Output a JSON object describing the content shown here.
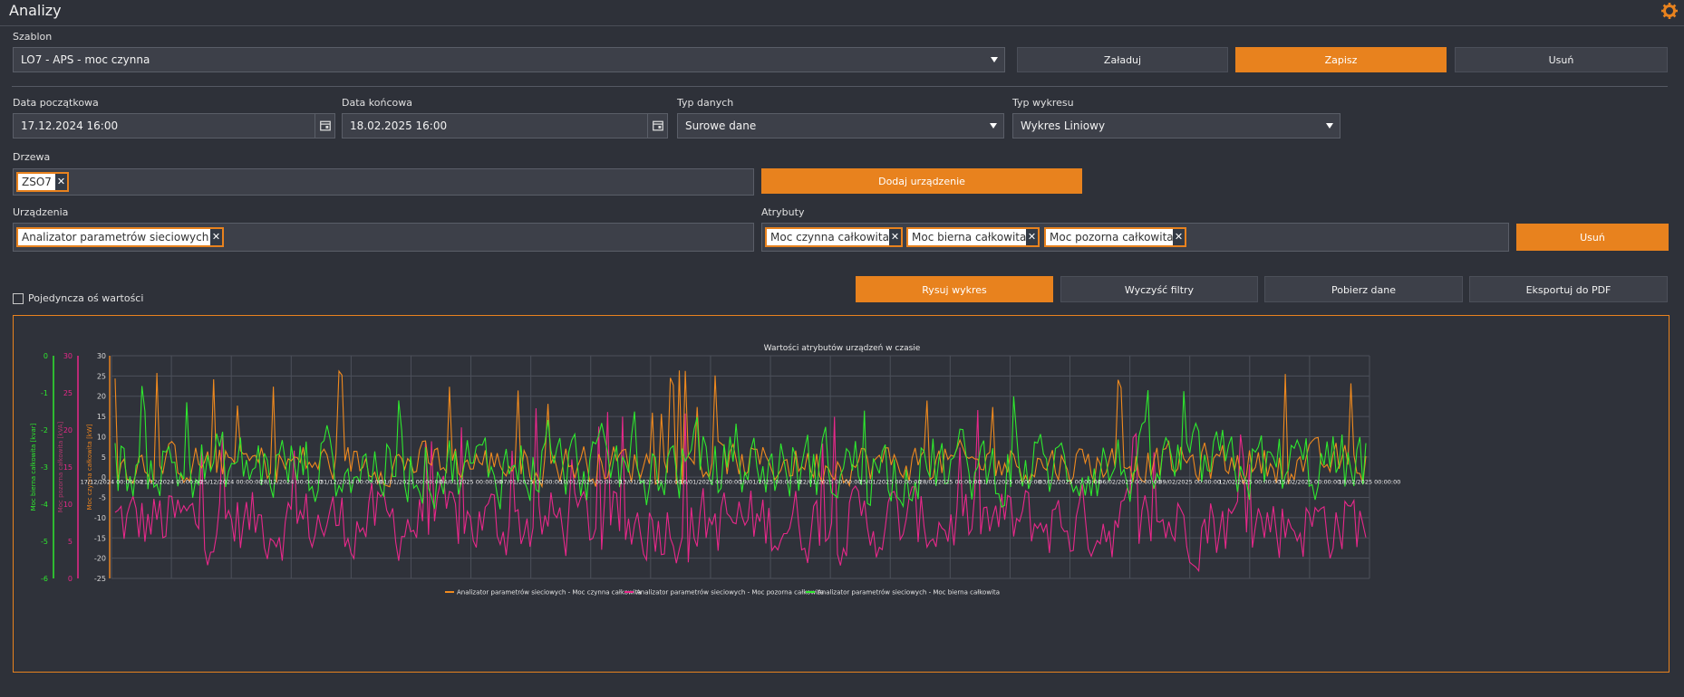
{
  "app": {
    "title": "Analizy"
  },
  "template": {
    "label": "Szablon",
    "selected": "LO7 - APS - moc czynna",
    "load_label": "Załaduj",
    "save_label": "Zapisz",
    "delete_label": "Usuń"
  },
  "filters": {
    "start_label": "Data początkowa",
    "start_value": "17.12.2024 16:00",
    "end_label": "Data końcowa",
    "end_value": "18.02.2025 16:00",
    "data_type_label": "Typ danych",
    "data_type_value": "Surowe dane",
    "chart_type_label": "Typ wykresu",
    "chart_type_value": "Wykres Liniowy"
  },
  "trees": {
    "label": "Drzewa",
    "chips": [
      "ZSO7"
    ],
    "add_device_label": "Dodaj urządzenie"
  },
  "devices": {
    "label": "Urządzenia",
    "chips": [
      "Analizator parametrów sieciowych"
    ]
  },
  "attributes": {
    "label": "Atrybuty",
    "chips": [
      "Moc czynna całkowita",
      "Moc bierna całkowita",
      "Moc pozorna całkowita"
    ],
    "delete_label": "Usuń"
  },
  "options": {
    "single_axis_label": "Pojedyncza oś wartości"
  },
  "actions": {
    "draw": "Rysuj wykres",
    "clear": "Wyczyść filtry",
    "download": "Pobierz dane",
    "export_pdf": "Eksportuj do PDF"
  },
  "colors": {
    "accent": "#e8821e",
    "active_power": "#f08a1e",
    "apparent_power": "#e8288a",
    "reactive_power": "#2ee82e"
  },
  "icons": {
    "gear": "gear-icon",
    "calendar": "calendar-icon",
    "remove": "close-icon",
    "dropdown": "chevron-down-icon"
  },
  "chart_data": {
    "type": "line",
    "title": "Wartości atrybutów urządzeń w czasie",
    "x_tick_labels": [
      "17/12/2024 00:00:00",
      "21/12/2024 00:00:00",
      "25/12/2024 00:00:00",
      "28/12/2024 00:00:00",
      "31/12/2024 00:00:00",
      "01/01/2025 00:00:00",
      "04/01/2025 00:00:00",
      "07/01/2025 00:00:00",
      "10/01/2025 00:00:00",
      "13/01/2025 00:00:00",
      "16/01/2025 00:00:00",
      "19/01/2025 00:00:00",
      "22/01/2025 00:00:00",
      "25/01/2025 00:00:00",
      "28/01/2025 00:00:00",
      "31/01/2025 00:00:00",
      "03/02/2025 00:00:00",
      "06/02/2025 00:00:00",
      "09/02/2025 00:00:00",
      "12/02/2025 00:00:00",
      "15/02/2025 00:00:00",
      "18/02/2025 00:00:00"
    ],
    "axes": [
      {
        "id": "active",
        "ylabel": "Moc czynna całkowita [kW]",
        "ticks": [
          30,
          25,
          20,
          15,
          10,
          5,
          0,
          -5,
          -10,
          -15,
          -20,
          -25
        ],
        "ylim": [
          -25,
          30
        ]
      },
      {
        "id": "apparent",
        "ylabel": "Moc pozorna całkowita [kVA]",
        "ticks": [
          30,
          25,
          20,
          15,
          10,
          5,
          0
        ],
        "ylim": [
          0,
          30
        ]
      },
      {
        "id": "reactive",
        "ylabel": "Moc bierna całkowita [kvar]",
        "ticks": [
          0,
          -1,
          -2,
          -3,
          -4,
          -5,
          -6
        ],
        "ylim": [
          -6,
          0
        ]
      }
    ],
    "series": [
      {
        "name": "Analizator parametrów sieciowych - Moc czynna całkowita",
        "axis": "active",
        "approx_level": 3.5,
        "approx_peak": 27
      },
      {
        "name": "Analizator parametrów sieciowych - Moc pozorna całkowita",
        "axis": "apparent",
        "approx_level": 7.5,
        "approx_peak": 23
      },
      {
        "name": "Analizator parametrów sieciowych - Moc bierna całkowita",
        "axis": "reactive",
        "approx_level": -3.0,
        "approx_peak": -0.8
      }
    ],
    "legend_position": "bottom"
  }
}
